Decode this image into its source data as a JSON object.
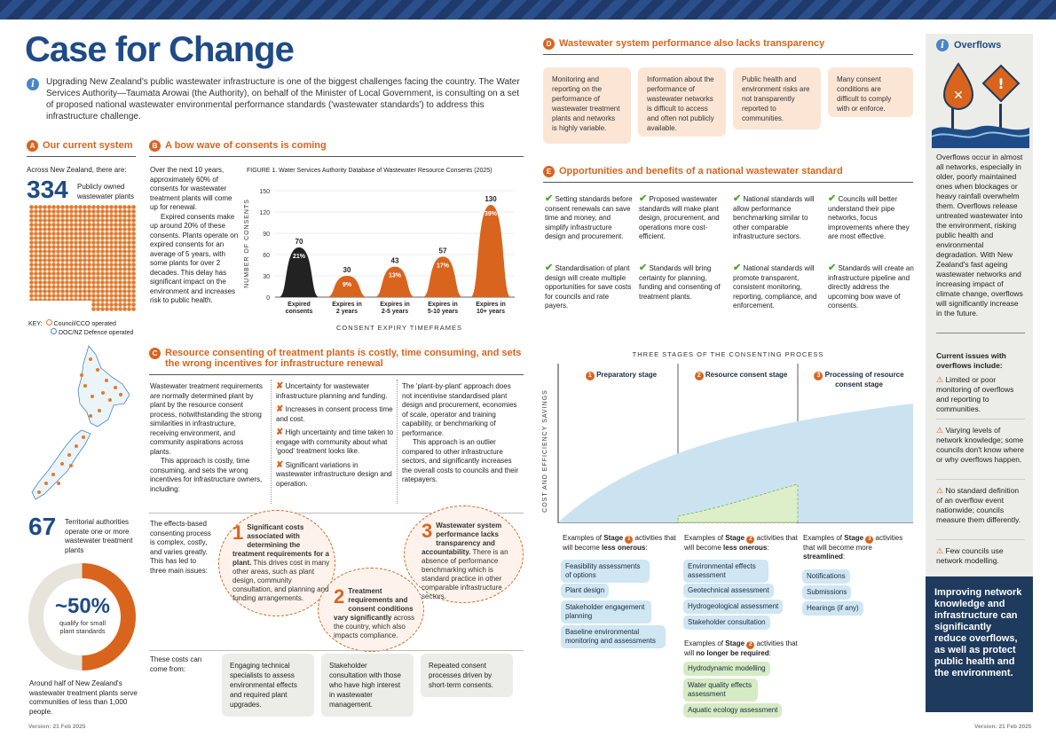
{
  "title": "Case for Change",
  "intro": "Upgrading New Zealand's public wastewater infrastructure is one of the biggest challenges facing the country. The Water Services Authority—Taumata Arowai (the Authority), on behalf of the Minister of Local Government, is consulting on a set of proposed national wastewater environmental performance standards ('wastewater standards') to address this infrastructure challenge.",
  "secA": {
    "badge": "A",
    "title": "Our current system",
    "lead": "Across New Zealand, there are:",
    "num": "334",
    "num_label": "Publicly owned wastewater plants",
    "key_label": "KEY:",
    "key1": "Council/CCO operated",
    "key2": "DOC/NZ Defence operated",
    "num2": "67",
    "num2_label": "Territorial authorities operate one or more wastewater treatment plants",
    "pct": "~50%",
    "pct_label": "qualify for small plant standards",
    "foot": "Around half of New Zealand's wastewater treatment plants serve communities of less than 1,000 people."
  },
  "secB": {
    "badge": "B",
    "title": "A bow wave of consents is coming",
    "p1": "Over the next 10 years, approximately 60% of consents for wastewater treatment plants will come up for renewal.",
    "p2": "Expired consents make up around 20% of these consents. Plants operate on expired consents for an average of 5 years, with some plants for over 2 decades. This delay has significant impact on the environment and increases risk to public health."
  },
  "chart_data": {
    "type": "area",
    "title": "FIGURE 1. Water Services Authority Database of Wastewater Resource Consents (2025)",
    "ylabel": "NUMBER OF CONSENTS",
    "xlabel": "CONSENT EXPIRY TIMEFRAMES",
    "ylim": [
      0,
      150
    ],
    "yticks": [
      "0",
      "30",
      "60",
      "90",
      "120",
      "150"
    ],
    "categories": [
      "Expired consents",
      "Expires in 2 years",
      "Expires in 2-5 years",
      "Expires in 5-10 years",
      "Expires in 10+ years"
    ],
    "values": [
      70,
      30,
      43,
      57,
      130
    ],
    "percent_labels": [
      "21%",
      "9%",
      "13%",
      "17%",
      "39%"
    ],
    "value_labels": [
      "70",
      "30",
      "43",
      "57",
      "130"
    ],
    "colors": [
      "#222222",
      "#d9641e",
      "#d9641e",
      "#d9641e",
      "#d9641e"
    ]
  },
  "secC": {
    "badge": "C",
    "title": "Resource consenting of treatment plants is costly, time consuming, and sets the wrong incentives for infrastructure renewal",
    "p1": "Wastewater treatment requirements are normally determined plant by plant by the resource consent process, notwithstanding the strong similarities in infrastructure, receiving environment, and community aspirations across plants.",
    "p2": "This approach is costly, time consuming, and sets the wrong incentives for infrastructure owners, including:",
    "x1": "Uncertainty for wastewater infrastructure planning and funding.",
    "x2": "Increases in consent process time and cost.",
    "x3": "High uncertainty and time taken to engage with community about what 'good' treatment looks like.",
    "x4": "Significant variations in wastewater infrastructure design and operation.",
    "r1": "The 'plant-by-plant' approach does not incentivise standardised plant design and procurement, economies of scale, operator and training capability, or benchmarking of performance.",
    "r2": "This approach is an outlier compared to other infrastructure sectors, and significantly increases the overall costs to councils and their ratepayers.",
    "effects": "The effects-based consenting process is complex, costly, and varies greatly. This has led to three main issues:",
    "i1n": "1",
    "i1h": "Significant costs associated with determining the treatment requirements for a plant.",
    "i1b": "This drives cost in many other areas, such as plant design, community consultation, and planning and funding arrangements.",
    "i2n": "2",
    "i2h": "Treatment requirements and consent conditions vary significantly",
    "i2b": "across the country, which also impacts compliance.",
    "i3n": "3",
    "i3h": "Wastewater system performance lacks transparency and accountability.",
    "i3b": "There is an absence of performance benchmarking which is standard practice in other comparable infrastructure sectors.",
    "costs_lead": "These costs can come from:",
    "c1": "Engaging technical specialists to assess environmental effects and required plant upgrades.",
    "c2": "Stakeholder consultation with those who have high interest in wastewater management.",
    "c3": "Repeated consent processes driven by short-term consents."
  },
  "secD": {
    "badge": "D",
    "title": "Wastewater system performance also lacks transparency",
    "cards": [
      "Monitoring and reporting on the performance of wastewater treatment plants and networks is highly variable.",
      "Information about the performance of wastewater networks is difficult to access and often not publicly available.",
      "Public health and environment risks are not transparently reported to communities.",
      "Many consent conditions are difficult to comply with or enforce."
    ]
  },
  "secE": {
    "badge": "E",
    "title": "Opportunities and benefits of a national wastewater standard",
    "items": [
      "Setting standards before consent renewals can save time and money, and simplify infrastructure design and procurement.",
      "Proposed wastewater standards will make plant design, procurement, and operations more cost-efficient.",
      "National standards will allow performance benchmarking similar to other comparable infrastructure sectors.",
      "Councils will better understand their pipe networks, focus improvements where they are most effective.",
      "Standardisation of plant design will create multiple opportunities for save costs for councils and rate payers.",
      "Standards will bring certainty for planning, funding and consenting of treatment plants.",
      "National standards will promote transparent, consistent monitoring, reporting, compliance, and enforcement.",
      "Standards will create an infrastructure pipeline and directly address the upcoming bow wave of consents."
    ]
  },
  "stages": {
    "title": "THREE STAGES OF THE CONSENTING PROCESS",
    "ylabel": "COST AND EFFICIENCY SAVINGS",
    "s1n": "1",
    "s1": "Preparatory stage",
    "s2n": "2",
    "s2": "Resource consent stage",
    "s3n": "3",
    "s3": "Processing of resource consent stage",
    "ex_prefix": "Examples of",
    "ex_stage": "Stage",
    "ex_mid": "activities that will become",
    "less_onerous": "less onerous",
    "more_stream": "streamlined",
    "no_longer": "no longer be required",
    "will_become_more": "activities that will become more",
    "that_will": "activities that will",
    "st1": [
      "Feasibility assessments of options",
      "Plant design",
      "Stakeholder engagement planning",
      "Baseline environmental monitoring and assessments"
    ],
    "st2": [
      "Environmental effects assessment",
      "Geotechnical assessment",
      "Hydrogeological assessment",
      "Stakeholder consultation"
    ],
    "st2b": [
      "Hydrodynamic modelling",
      "Water quality effects assessment",
      "Aquatic ecology assessment"
    ],
    "st3": [
      "Notifications",
      "Submissions",
      "Hearings (if any)"
    ]
  },
  "overflows": {
    "title": "Overflows",
    "body": "Overflows occur in almost all networks, especially in older, poorly maintained ones when blockages or heavy rainfall overwhelm them. Overflows release untreated wastewater into the environment, risking public health and environmental degradation. With New Zealand's fast ageing wastewater networks and increasing impact of climate change, overflows will significantly increase in the future.",
    "issues_title": "Current issues with overflows include:",
    "issues": [
      "Limited or poor monitoring of overflows and reporting to communities.",
      "Varying levels of network knowledge; some councils don't know where or why overflows happen.",
      "No standard definition of an overflow event nationwide; councils measure them differently.",
      "Few councils use network modelling."
    ],
    "callout": "Improving network knowledge and infrastructure can significantly reduce overflows, as well as protect public health and the environment."
  },
  "version_left": "Version: 21 Feb 2025",
  "version_right": "Version: 21 Feb 2025"
}
